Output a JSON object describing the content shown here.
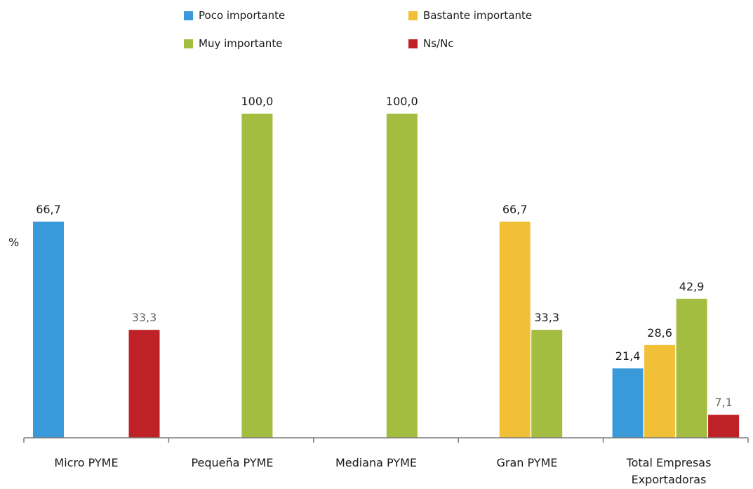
{
  "chart_data": {
    "type": "bar",
    "ylabel": "%",
    "ylim": [
      0,
      100
    ],
    "grid": false,
    "legend_placement": "top",
    "categories": [
      "Micro PYME",
      "Pequeña PYME",
      "Mediana PYME",
      "Gran PYME",
      "Total Empresas Exportadoras"
    ],
    "category_lines": [
      [
        "Micro PYME"
      ],
      [
        "Pequeña PYME"
      ],
      [
        "Mediana PYME"
      ],
      [
        "Gran PYME"
      ],
      [
        "Total Empresas",
        "Exportadoras"
      ]
    ],
    "series": [
      {
        "name": "Poco importante",
        "color": "#3a9ad9",
        "values": [
          66.7,
          null,
          null,
          null,
          21.4
        ],
        "labels": [
          "66,7",
          "",
          "",
          "",
          "21,4"
        ]
      },
      {
        "name": "Bastante importante",
        "color": "#f2c037",
        "values": [
          null,
          null,
          null,
          66.7,
          28.6
        ],
        "labels": [
          "",
          "",
          "",
          "66,7",
          "28,6"
        ]
      },
      {
        "name": "Muy importante",
        "color": "#a3bd40",
        "values": [
          null,
          100.0,
          100.0,
          33.3,
          42.9
        ],
        "labels": [
          "",
          "100,0",
          "100,0",
          "33,3",
          "42,9"
        ]
      },
      {
        "name": "Ns/Nc",
        "color": "#bf2226",
        "values": [
          33.3,
          null,
          null,
          null,
          7.1
        ],
        "labels": [
          "33,3",
          "",
          "",
          "",
          "7,1"
        ]
      }
    ]
  }
}
